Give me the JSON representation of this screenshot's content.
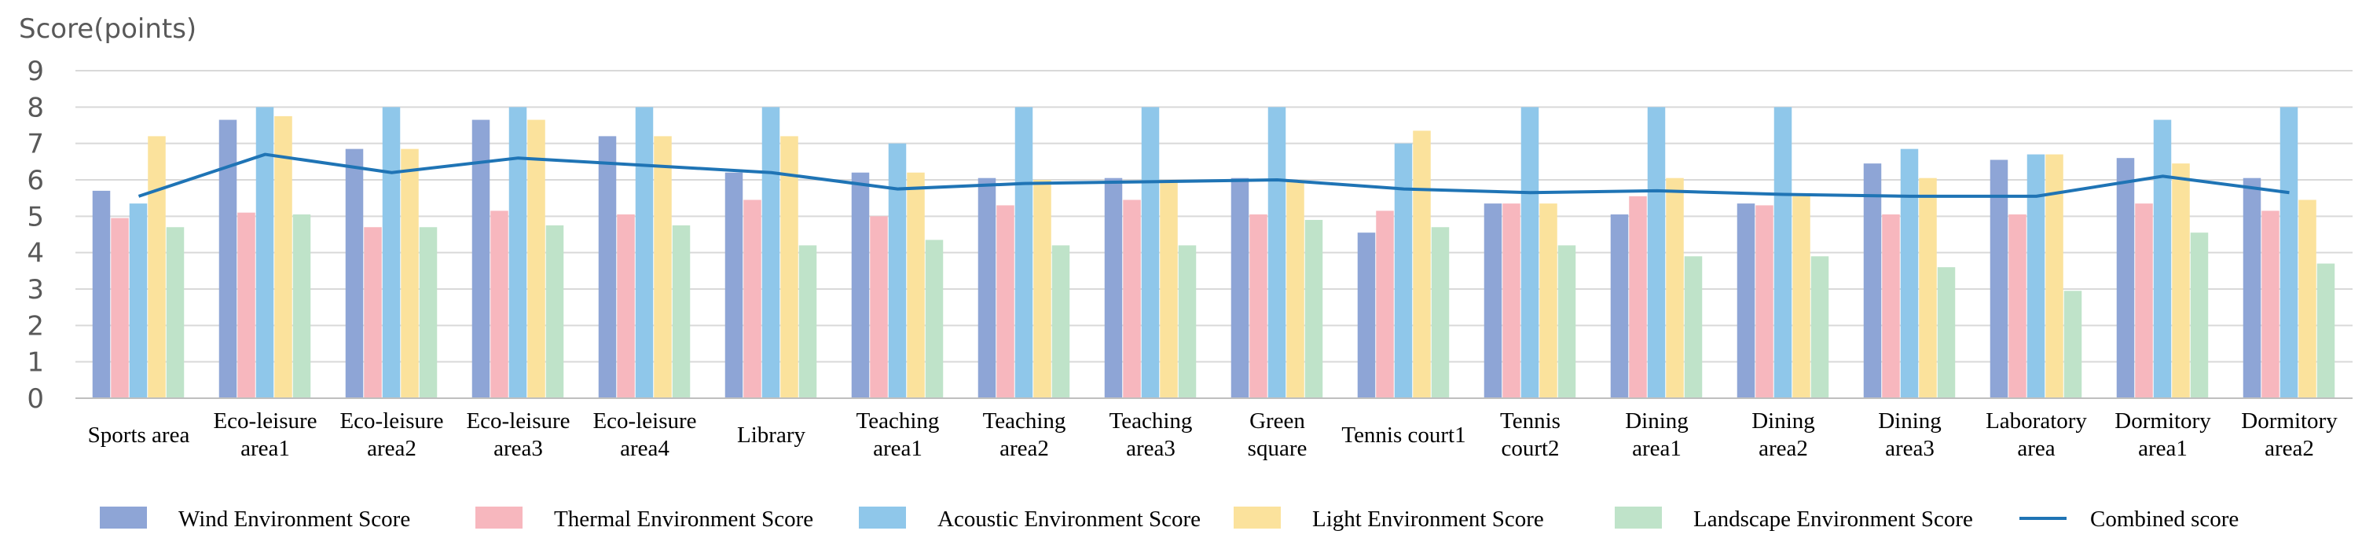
{
  "chart_data": {
    "type": "bar",
    "ylabel": "Score(points)",
    "ylim": [
      0,
      9
    ],
    "yticks": [
      "0",
      "1",
      "2",
      "3",
      "4",
      "5",
      "6",
      "7",
      "8",
      "9"
    ],
    "grid": true,
    "legend_position": "bottom",
    "categories": [
      [
        "Sports area"
      ],
      [
        "Eco-leisure",
        "area1"
      ],
      [
        "Eco-leisure",
        "area2"
      ],
      [
        "Eco-leisure",
        "area3"
      ],
      [
        "Eco-leisure",
        "area4"
      ],
      [
        "Library"
      ],
      [
        "Teaching",
        "area1"
      ],
      [
        "Teaching",
        "area2"
      ],
      [
        "Teaching",
        "area3"
      ],
      [
        "Green",
        "square"
      ],
      [
        "Tennis court1"
      ],
      [
        "Tennis",
        "court2"
      ],
      [
        "Dining",
        "area1"
      ],
      [
        "Dining",
        "area2"
      ],
      [
        "Dining",
        "area3"
      ],
      [
        "Laboratory",
        "area"
      ],
      [
        "Dormitory",
        "area1"
      ],
      [
        "Dormitory",
        "area2"
      ]
    ],
    "series": [
      {
        "name": "Wind Environment Score",
        "color": "#8EA5D6",
        "values": [
          5.7,
          7.65,
          6.85,
          7.65,
          7.2,
          6.2,
          6.2,
          6.05,
          6.05,
          6.05,
          4.55,
          5.35,
          5.05,
          5.35,
          6.45,
          6.55,
          6.6,
          6.05
        ]
      },
      {
        "name": "Thermal Environment Score",
        "color": "#F7B7BE",
        "values": [
          4.95,
          5.1,
          4.7,
          5.15,
          5.05,
          5.45,
          5.0,
          5.3,
          5.45,
          5.05,
          5.15,
          5.35,
          5.55,
          5.3,
          5.05,
          5.05,
          5.35,
          5.15
        ]
      },
      {
        "name": "Acoustic Environment Score",
        "color": "#8FC7EA",
        "values": [
          5.35,
          8.0,
          8.0,
          8.0,
          8.0,
          8.0,
          7.0,
          8.0,
          8.0,
          8.0,
          7.0,
          8.0,
          8.0,
          8.0,
          6.85,
          6.7,
          7.65,
          8.0
        ]
      },
      {
        "name": "Light Environment Score",
        "color": "#FBE29C",
        "values": [
          7.2,
          7.75,
          6.85,
          7.65,
          7.2,
          7.2,
          6.2,
          6.0,
          6.0,
          6.0,
          7.35,
          5.35,
          6.05,
          5.55,
          6.05,
          6.7,
          6.45,
          5.45
        ]
      },
      {
        "name": "Landscape Environment Score",
        "color": "#BFE3C9",
        "values": [
          4.7,
          5.05,
          4.7,
          4.75,
          4.75,
          4.2,
          4.35,
          4.2,
          4.2,
          4.9,
          4.7,
          4.2,
          3.9,
          3.9,
          3.6,
          2.95,
          4.55,
          3.7
        ]
      }
    ],
    "line": {
      "name": "Combined score",
      "color": "#1F74B5",
      "values": [
        5.55,
        6.7,
        6.2,
        6.6,
        6.4,
        6.2,
        5.75,
        5.9,
        5.95,
        6.0,
        5.75,
        5.65,
        5.7,
        5.6,
        5.55,
        5.55,
        6.1,
        5.65
      ]
    }
  }
}
